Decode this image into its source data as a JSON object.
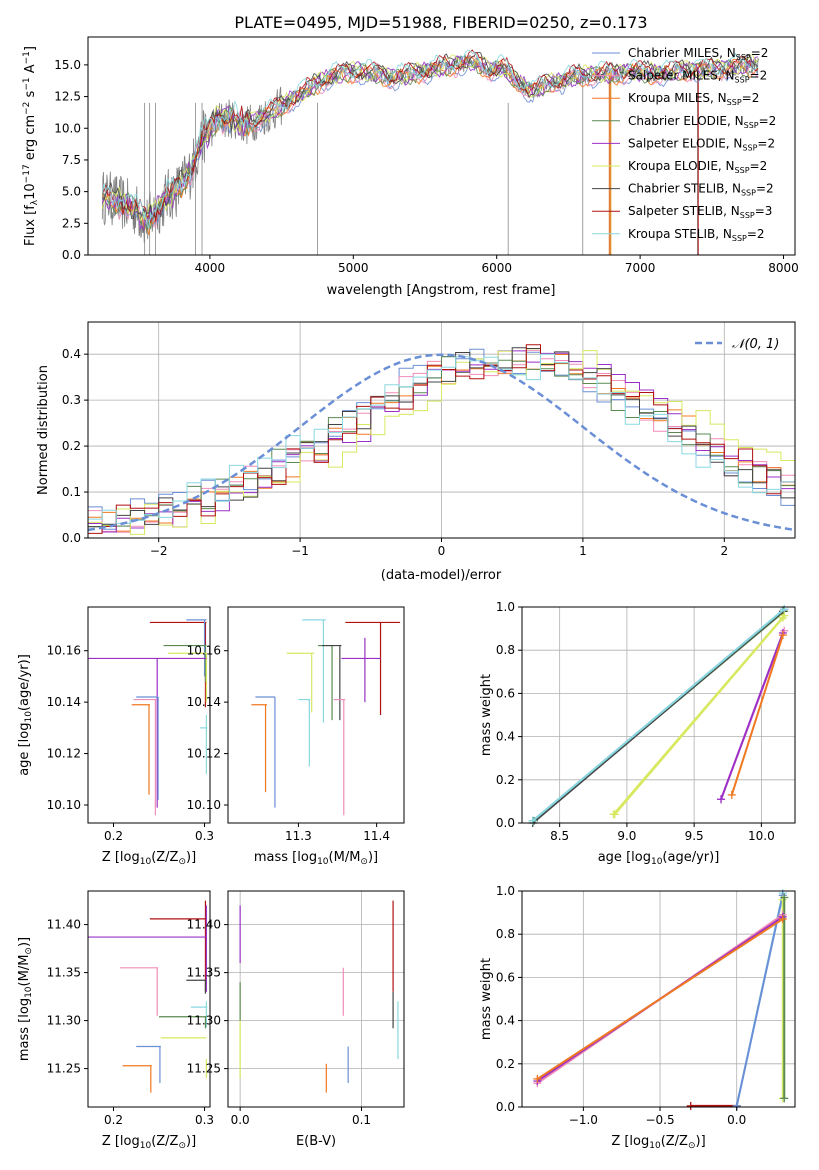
{
  "colors": {
    "Chabrier MILES": "#6b8fd6",
    "Salpeter MILES": "#f08cb8",
    "Kroupa MILES": "#f07820",
    "Chabrier ELODIE": "#5a8a50",
    "Salpeter ELODIE": "#9b30c8",
    "Kroupa ELODIE": "#d8e860",
    "Chabrier STELIB": "#444444",
    "Salpeter STELIB": "#b01010",
    "Kroupa STELIB": "#88d8e0",
    "gaussian": "#6b8fd6",
    "spectrum_gray": "#808080"
  },
  "chart_data": [
    {
      "id": "spectrum",
      "type": "line",
      "title": "PLATE=0495, MJD=51988, FIBERID=0250, z=0.173",
      "xlabel": "wavelength [Angstrom, rest frame]",
      "ylabel_main": "Flux [f",
      "ylabel_lambda": "λ",
      "ylabel_rest": "10",
      "ylabel_exp1": "−17",
      "ylabel_units": " erg cm",
      "ylabel_exp2": "−2",
      "ylabel_s": " s",
      "ylabel_exp3": "−1",
      "ylabel_A": " A",
      "ylabel_exp4": "−1",
      "ylabel_end": "]",
      "xlim": [
        3150,
        8080
      ],
      "ylim": [
        0,
        17.2
      ],
      "xticks": [
        "4000",
        "5000",
        "6000",
        "7000",
        "8000"
      ],
      "yticks": [
        "0.0",
        "2.5",
        "5.0",
        "7.5",
        "10.0",
        "12.5",
        "15.0"
      ],
      "continuum_points": [
        [
          3250,
          4.6
        ],
        [
          3320,
          4.4
        ],
        [
          3400,
          4.0
        ],
        [
          3480,
          3.6
        ],
        [
          3560,
          2.6
        ],
        [
          3620,
          3.4
        ],
        [
          3700,
          4.6
        ],
        [
          3780,
          5.2
        ],
        [
          3860,
          6.5
        ],
        [
          3950,
          9.2
        ],
        [
          4050,
          10.6
        ],
        [
          4150,
          10.8
        ],
        [
          4250,
          10.2
        ],
        [
          4350,
          10.8
        ],
        [
          4450,
          11.4
        ],
        [
          4550,
          12.1
        ],
        [
          4650,
          12.8
        ],
        [
          4750,
          13.6
        ],
        [
          4850,
          14.1
        ],
        [
          4950,
          14.4
        ],
        [
          5050,
          14.5
        ],
        [
          5150,
          14.3
        ],
        [
          5250,
          14.0
        ],
        [
          5350,
          14.1
        ],
        [
          5450,
          14.4
        ],
        [
          5550,
          14.6
        ],
        [
          5650,
          14.9
        ],
        [
          5750,
          15.1
        ],
        [
          5850,
          15.3
        ],
        [
          5950,
          14.6
        ],
        [
          6050,
          14.8
        ],
        [
          6150,
          13.6
        ],
        [
          6250,
          12.9
        ],
        [
          6350,
          13.5
        ],
        [
          6450,
          13.7
        ],
        [
          6550,
          14.1
        ],
        [
          6650,
          14.2
        ],
        [
          6750,
          14.3
        ],
        [
          6850,
          14.3
        ],
        [
          6950,
          14.5
        ],
        [
          7050,
          14.4
        ],
        [
          7150,
          14.3
        ],
        [
          7250,
          14.5
        ],
        [
          7400,
          14.6
        ],
        [
          7550,
          14.7
        ],
        [
          7700,
          14.9
        ],
        [
          7830,
          15.0
        ]
      ],
      "legend": [
        {
          "label": "Chabrier MILES, N",
          "sub": "SSP",
          "suffix": "=2"
        },
        {
          "label": "Salpeter MILES, N",
          "sub": "SSP",
          "suffix": "=2"
        },
        {
          "label": "Kroupa MILES, N",
          "sub": "SSP",
          "suffix": "=2"
        },
        {
          "label": "Chabrier ELODIE, N",
          "sub": "SSP",
          "suffix": "=2"
        },
        {
          "label": "Salpeter ELODIE, N",
          "sub": "SSP",
          "suffix": "=2"
        },
        {
          "label": "Kroupa ELODIE, N",
          "sub": "SSP",
          "suffix": "=2"
        },
        {
          "label": "Chabrier STELIB, N",
          "sub": "SSP",
          "suffix": "=2"
        },
        {
          "label": "Salpeter STELIB, N",
          "sub": "SSP",
          "suffix": "=3"
        },
        {
          "label": "Kroupa STELIB, N",
          "sub": "SSP",
          "suffix": "=2"
        }
      ],
      "legend_placement": "top-right"
    },
    {
      "id": "residuals",
      "type": "line",
      "xlabel": "(data-model)/error",
      "ylabel": "Normed distribution",
      "xlim": [
        -2.5,
        2.5
      ],
      "ylim": [
        0,
        0.47
      ],
      "grid": true,
      "xticks": [
        "−2",
        "−1",
        "0",
        "1",
        "2"
      ],
      "yticks": [
        "0.0",
        "0.1",
        "0.2",
        "0.3",
        "0.4"
      ],
      "gaussian_label": "𝒩(0, 1)",
      "gaussian": {
        "mean": 0,
        "sigma": 1
      },
      "legend_placement": "top-right"
    },
    {
      "id": "age_vs_Z",
      "type": "scatter",
      "xlabel": "Z [log",
      "xlabel_sub": "10",
      "xlabel_rest": "(Z/Z",
      "xlabel_sun": "⊙",
      "xlabel_end": ")]",
      "ylabel": "age  [log",
      "ylabel_sub": "10",
      "ylabel_rest": "(age/yr)]",
      "xlim": [
        0.172,
        0.306
      ],
      "ylim": [
        10.093,
        10.177
      ],
      "xticks": [
        {
          "v": 0.2,
          "t": "0.2"
        },
        {
          "v": 0.3,
          "t": "0.3"
        }
      ],
      "yticks": [
        {
          "v": 10.1,
          "t": "10.10"
        },
        {
          "v": 10.12,
          "t": "10.12"
        },
        {
          "v": 10.14,
          "t": "10.14"
        },
        {
          "v": 10.16,
          "t": "10.16"
        }
      ]
    },
    {
      "id": "age_vs_mass",
      "type": "scatter",
      "xlabel": "mass [log",
      "xlabel_sub": "10",
      "xlabel_rest": "(M/M",
      "xlabel_sun": "⊙",
      "xlabel_end": ")]",
      "xlim": [
        11.21,
        11.435
      ],
      "ylim": [
        10.093,
        10.177
      ],
      "xticks": [
        {
          "v": 11.3,
          "t": "11.3"
        },
        {
          "v": 11.4,
          "t": "11.4"
        }
      ],
      "yticks": [
        {
          "v": 10.1,
          "t": "10.10"
        },
        {
          "v": 10.12,
          "t": "10.12"
        },
        {
          "v": 10.14,
          "t": "10.14"
        },
        {
          "v": 10.16,
          "t": "10.16"
        }
      ]
    },
    {
      "id": "mass_weight_vs_age",
      "type": "line",
      "xlabel": "age  [log",
      "xlabel_sub": "10",
      "xlabel_rest": "(age/yr)]",
      "ylabel": "mass weight",
      "xlim": [
        8.22,
        10.25
      ],
      "ylim": [
        0,
        1.0
      ],
      "grid": true,
      "xticks": [
        {
          "v": 8.5,
          "t": "8.5"
        },
        {
          "v": 9.0,
          "t": "9.0"
        },
        {
          "v": 9.5,
          "t": "9.5"
        },
        {
          "v": 10.0,
          "t": "10.0"
        }
      ],
      "yticks": [
        {
          "v": 0,
          "t": "0.0"
        },
        {
          "v": 0.2,
          "t": "0.2"
        },
        {
          "v": 0.4,
          "t": "0.4"
        },
        {
          "v": 0.6,
          "t": "0.6"
        },
        {
          "v": 0.8,
          "t": "0.8"
        },
        {
          "v": 1.0,
          "t": "1.0"
        }
      ],
      "series": [
        {
          "color": "Chabrier MILES",
          "x": [
            8.3,
            10.17
          ],
          "y": [
            0.01,
            0.99
          ]
        },
        {
          "color": "Chabrier ELODIE",
          "x": [
            8.31,
            10.17
          ],
          "y": [
            0.01,
            0.98
          ]
        },
        {
          "color": "Chabrier STELIB",
          "x": [
            8.3,
            10.16
          ],
          "y": [
            0.0,
            0.98
          ]
        },
        {
          "color": "Kroupa STELIB",
          "x": [
            8.3,
            10.17
          ],
          "y": [
            0.01,
            0.99
          ]
        },
        {
          "color": "Kroupa ELODIE",
          "x": [
            8.9,
            10.17
          ],
          "y": [
            0.04,
            0.96
          ]
        },
        {
          "color": "Kroupa ELODIE",
          "x": [
            8.91,
            10.16
          ],
          "y": [
            0.04,
            0.95
          ]
        },
        {
          "color": "Salpeter MILES",
          "x": [
            9.7,
            10.17
          ],
          "y": [
            0.11,
            0.89
          ]
        },
        {
          "color": "Salpeter ELODIE",
          "x": [
            9.7,
            10.16
          ],
          "y": [
            0.11,
            0.88
          ]
        },
        {
          "color": "Kroupa MILES",
          "x": [
            9.78,
            10.16
          ],
          "y": [
            0.13,
            0.87
          ]
        }
      ]
    },
    {
      "id": "mass_vs_Z",
      "type": "scatter",
      "xlabel": "Z [log",
      "xlabel_sub": "10",
      "xlabel_rest": "(Z/Z",
      "xlabel_sun": "⊙",
      "xlabel_end": ")]",
      "ylabel": "mass [log",
      "ylabel_sub": "10",
      "ylabel_rest": "(M/M",
      "ylabel_sun": "⊙",
      "ylabel_end": ")]",
      "xlim": [
        0.172,
        0.306
      ],
      "ylim": [
        11.21,
        11.435
      ],
      "xticks": [
        {
          "v": 0.2,
          "t": "0.2"
        },
        {
          "v": 0.3,
          "t": "0.3"
        }
      ],
      "yticks": [
        {
          "v": 11.25,
          "t": "11.25"
        },
        {
          "v": 11.3,
          "t": "11.30"
        },
        {
          "v": 11.35,
          "t": "11.35"
        },
        {
          "v": 11.4,
          "t": "11.40"
        }
      ]
    },
    {
      "id": "mass_vs_ebv",
      "type": "scatter",
      "xlabel": "E(B-V)",
      "xlim": [
        -0.01,
        0.135
      ],
      "ylim": [
        11.21,
        11.435
      ],
      "xticks": [
        {
          "v": 0,
          "t": "0.0"
        },
        {
          "v": 0.1,
          "t": "0.1"
        }
      ],
      "yticks": [
        {
          "v": 11.25,
          "t": "11.25"
        },
        {
          "v": 11.3,
          "t": "11.30"
        },
        {
          "v": 11.35,
          "t": "11.35"
        },
        {
          "v": 11.4,
          "t": "11.40"
        }
      ],
      "grid": true
    },
    {
      "id": "mass_weight_vs_Z",
      "type": "line",
      "xlabel": "Z [log",
      "xlabel_sub": "10",
      "xlabel_rest": "(Z/Z",
      "xlabel_sun": "⊙",
      "xlabel_end": ")]",
      "ylabel": "mass weight",
      "xlim": [
        -1.4,
        0.38
      ],
      "ylim": [
        0,
        1.0
      ],
      "grid": true,
      "xticks": [
        {
          "v": -1.0,
          "t": "−1.0"
        },
        {
          "v": -0.5,
          "t": "−0.5"
        },
        {
          "v": 0.0,
          "t": "0.0"
        }
      ],
      "yticks": [
        {
          "v": 0,
          "t": "0.0"
        },
        {
          "v": 0.2,
          "t": "0.2"
        },
        {
          "v": 0.4,
          "t": "0.4"
        },
        {
          "v": 0.6,
          "t": "0.6"
        },
        {
          "v": 0.8,
          "t": "0.8"
        },
        {
          "v": 1.0,
          "t": "1.0"
        }
      ],
      "series": [
        {
          "color": "Salpeter STELIB",
          "x": [
            -0.3,
            0.0
          ],
          "y": [
            0.005,
            0.005
          ]
        },
        {
          "color": "Kroupa STELIB",
          "x": [
            0.0,
            0.3
          ],
          "y": [
            0.005,
            0.99
          ]
        },
        {
          "color": "Chabrier MILES",
          "x": [
            0.0,
            0.3
          ],
          "y": [
            0.005,
            0.98
          ]
        },
        {
          "color": "Kroupa ELODIE",
          "x": [
            0.3,
            0.3
          ],
          "y": [
            0.04,
            0.96
          ]
        },
        {
          "color": "Chabrier ELODIE",
          "x": [
            0.31,
            0.31
          ],
          "y": [
            0.04,
            0.97
          ]
        },
        {
          "color": "Salpeter MILES",
          "x": [
            -1.3,
            0.3
          ],
          "y": [
            0.11,
            0.89
          ]
        },
        {
          "color": "Salpeter ELODIE",
          "x": [
            -1.3,
            0.3
          ],
          "y": [
            0.12,
            0.88
          ]
        },
        {
          "color": "Kroupa MILES",
          "x": [
            -1.3,
            0.3
          ],
          "y": [
            0.13,
            0.87
          ]
        }
      ]
    }
  ]
}
